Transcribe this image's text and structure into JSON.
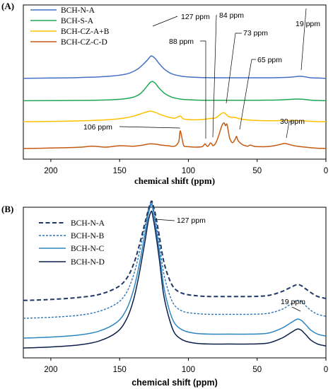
{
  "chart_data": [
    {
      "type": "line",
      "panel_label": "(A)",
      "xlabel": "chemical shift (ppm)",
      "ylabel": "",
      "xlim": [
        220,
        0
      ],
      "x_reversed": true,
      "xticks": [
        200,
        150,
        100,
        50,
        0
      ],
      "grid": false,
      "legend": "top-left",
      "series": [
        {
          "name": "BCH-N-A",
          "color": "#4472c4",
          "dashed": false,
          "offset": 3.0,
          "x": [
            220,
            200,
            180,
            165,
            155,
            148,
            142,
            137,
            133,
            130,
            128,
            127,
            126,
            124,
            121,
            117,
            112,
            105,
            98,
            90,
            80,
            70,
            55,
            40,
            28,
            22,
            19,
            16,
            12,
            6,
            0
          ],
          "y": [
            0.01,
            0.02,
            0.04,
            0.07,
            0.11,
            0.16,
            0.25,
            0.4,
            0.6,
            0.78,
            0.92,
            0.97,
            0.95,
            0.85,
            0.62,
            0.38,
            0.2,
            0.1,
            0.06,
            0.04,
            0.03,
            0.03,
            0.03,
            0.03,
            0.05,
            0.08,
            0.1,
            0.08,
            0.04,
            0.02,
            0.01
          ]
        },
        {
          "name": "BCH-S-A",
          "color": "#20a857",
          "dashed": false,
          "offset": 2.05,
          "x": [
            220,
            180,
            160,
            148,
            140,
            135,
            131,
            128,
            126,
            124,
            121,
            117,
            112,
            106,
            100,
            90,
            70,
            50,
            35,
            25,
            20,
            15,
            10,
            0
          ],
          "y": [
            0,
            0.01,
            0.03,
            0.07,
            0.15,
            0.3,
            0.55,
            0.77,
            0.82,
            0.74,
            0.52,
            0.3,
            0.15,
            0.07,
            0.04,
            0.02,
            0.02,
            0.02,
            0.03,
            0.06,
            0.07,
            0.05,
            0.02,
            0
          ]
        },
        {
          "name": "BCH-CZ-A+B",
          "color": "#ffc000",
          "dashed": false,
          "offset": 1.15,
          "x": [
            220,
            190,
            170,
            155,
            145,
            138,
            133,
            129,
            127,
            124,
            120,
            115,
            110,
            106,
            104,
            100,
            95,
            89,
            85,
            80,
            76,
            74,
            72,
            70,
            66,
            63,
            58,
            50,
            40,
            30,
            22,
            15,
            8,
            0
          ],
          "y": [
            0,
            0.02,
            0.05,
            0.1,
            0.17,
            0.27,
            0.37,
            0.44,
            0.45,
            0.4,
            0.3,
            0.2,
            0.15,
            0.24,
            0.13,
            0.09,
            0.08,
            0.1,
            0.13,
            0.17,
            0.35,
            0.38,
            0.28,
            0.2,
            0.18,
            0.13,
            0.08,
            0.05,
            0.04,
            0.05,
            0.05,
            0.03,
            0.01,
            0
          ]
        },
        {
          "name": "BCH-CZ-C-D",
          "color": "#c55a11",
          "dashed": false,
          "offset": 0.0,
          "x": [
            220,
            200,
            180,
            170,
            160,
            150,
            140,
            133,
            128,
            124,
            120,
            115,
            110,
            107,
            106,
            105,
            104,
            103,
            100,
            95,
            90,
            88,
            87,
            86,
            85,
            84,
            83,
            82,
            80,
            78,
            76,
            75,
            74,
            73,
            72,
            71,
            70,
            68,
            66,
            65,
            64,
            62,
            60,
            57,
            55,
            52,
            48,
            44,
            40,
            36,
            33,
            30,
            27,
            24,
            20,
            15,
            10,
            5,
            0
          ],
          "y": [
            0,
            0.02,
            0.05,
            0.1,
            0.06,
            0.12,
            0.1,
            0.15,
            0.2,
            0.19,
            0.15,
            0.12,
            0.1,
            0.3,
            0.75,
            0.55,
            0.25,
            0.1,
            0.08,
            0.06,
            0.08,
            0.2,
            0.14,
            0.09,
            0.15,
            0.24,
            0.2,
            0.12,
            0.25,
            0.55,
            0.92,
            1.05,
            1.1,
            0.98,
            1.05,
            0.75,
            0.45,
            0.25,
            0.4,
            0.52,
            0.35,
            0.22,
            0.15,
            0.1,
            0.15,
            0.09,
            0.08,
            0.08,
            0.1,
            0.14,
            0.18,
            0.22,
            0.18,
            0.13,
            0.09,
            0.06,
            0.03,
            0.01,
            0
          ]
        }
      ],
      "annotations": [
        "127 ppm",
        "84 ppm",
        "88 ppm",
        "73 ppm",
        "19 ppm",
        "65 ppm",
        "106 ppm",
        "30 ppm"
      ]
    },
    {
      "type": "line",
      "panel_label": "(B)",
      "xlabel": "chemical shift (ppm)",
      "ylabel": "",
      "xlim": [
        220,
        0
      ],
      "x_reversed": true,
      "xticks": [
        200,
        150,
        100,
        50,
        0
      ],
      "grid": false,
      "legend": "top-left",
      "series": [
        {
          "name": "BCH-N-A",
          "color": "#1f3864",
          "dashed": true,
          "offset": 0.48,
          "x": [
            220,
            200,
            180,
            165,
            152,
            145,
            140,
            136,
            132,
            129,
            127,
            126,
            124,
            121,
            118,
            114,
            110,
            104,
            96,
            85,
            70,
            55,
            42,
            32,
            26,
            21,
            18,
            15,
            11,
            6,
            0
          ],
          "y": [
            0,
            0.01,
            0.03,
            0.06,
            0.13,
            0.22,
            0.36,
            0.54,
            0.76,
            0.92,
            1.0,
            0.98,
            0.87,
            0.64,
            0.4,
            0.22,
            0.12,
            0.07,
            0.05,
            0.04,
            0.04,
            0.04,
            0.05,
            0.09,
            0.13,
            0.16,
            0.15,
            0.12,
            0.08,
            0.04,
            0.02
          ]
        },
        {
          "name": "BCH-N-B",
          "color": "#2e75b6",
          "dashed": true,
          "offset": 0.3,
          "x": [
            220,
            200,
            180,
            165,
            152,
            145,
            140,
            136,
            132,
            129,
            127,
            126,
            124,
            121,
            118,
            114,
            110,
            104,
            96,
            85,
            70,
            55,
            42,
            32,
            26,
            21,
            18,
            15,
            11,
            6,
            0
          ],
          "y": [
            0,
            0.01,
            0.03,
            0.07,
            0.15,
            0.26,
            0.43,
            0.64,
            0.9,
            1.1,
            1.17,
            1.14,
            1.0,
            0.74,
            0.46,
            0.25,
            0.13,
            0.07,
            0.05,
            0.04,
            0.04,
            0.04,
            0.05,
            0.09,
            0.14,
            0.18,
            0.17,
            0.13,
            0.08,
            0.04,
            0.02
          ]
        },
        {
          "name": "BCH-N-C",
          "color": "#2e86c1",
          "dashed": false,
          "offset": 0.1,
          "x": [
            220,
            200,
            180,
            165,
            152,
            145,
            140,
            136,
            132,
            129,
            127,
            126,
            124,
            121,
            118,
            114,
            110,
            104,
            96,
            85,
            70,
            55,
            42,
            32,
            26,
            21,
            18,
            15,
            11,
            6,
            0
          ],
          "y": [
            0,
            0.01,
            0.03,
            0.07,
            0.16,
            0.29,
            0.48,
            0.72,
            1.02,
            1.26,
            1.35,
            1.31,
            1.15,
            0.86,
            0.53,
            0.29,
            0.15,
            0.08,
            0.05,
            0.04,
            0.04,
            0.04,
            0.05,
            0.1,
            0.15,
            0.19,
            0.18,
            0.14,
            0.08,
            0.04,
            0.02
          ]
        },
        {
          "name": "BCH-N-D",
          "color": "#0c1f4a",
          "dashed": false,
          "offset": 0.0,
          "x": [
            220,
            200,
            180,
            165,
            152,
            145,
            140,
            136,
            132,
            129,
            127,
            126,
            124,
            121,
            118,
            114,
            110,
            104,
            96,
            85,
            70,
            55,
            42,
            32,
            26,
            21,
            18,
            15,
            11,
            6,
            0
          ],
          "y": [
            0,
            0.01,
            0.03,
            0.07,
            0.16,
            0.29,
            0.48,
            0.73,
            1.04,
            1.29,
            1.38,
            1.34,
            1.18,
            0.88,
            0.54,
            0.3,
            0.15,
            0.08,
            0.05,
            0.04,
            0.04,
            0.04,
            0.05,
            0.1,
            0.15,
            0.19,
            0.18,
            0.14,
            0.08,
            0.04,
            0.02
          ]
        }
      ],
      "annotations": [
        "127 ppm",
        "19 ppm"
      ]
    }
  ]
}
